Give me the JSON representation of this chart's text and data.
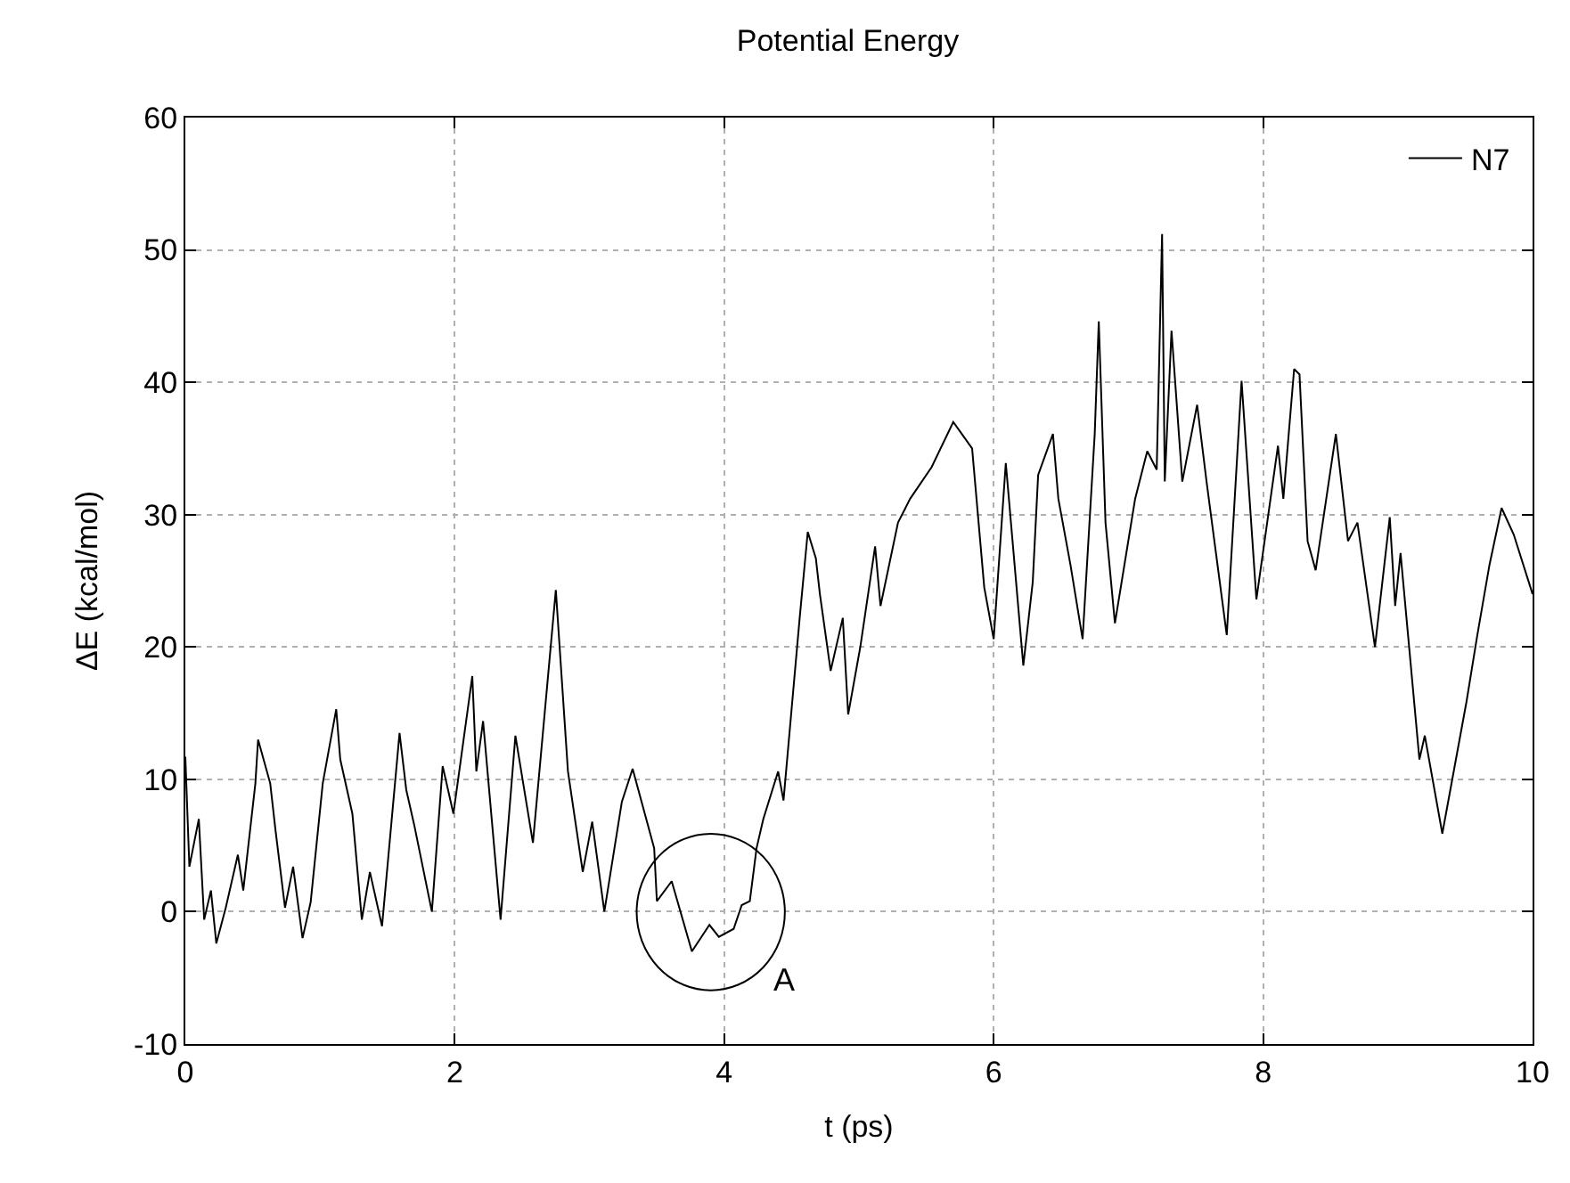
{
  "chart_data": {
    "type": "line",
    "title": "Potential Energy",
    "xlabel": "t (ps)",
    "ylabel": "ΔE (kcal/mol)",
    "x": [
      0,
      0.03,
      0.1,
      0.14,
      0.19,
      0.23,
      0.3,
      0.39,
      0.43,
      0.52,
      0.54,
      0.63,
      0.67,
      0.74,
      0.8,
      0.87,
      0.93,
      1.02,
      1.12,
      1.15,
      1.24,
      1.31,
      1.37,
      1.46,
      1.59,
      1.64,
      1.7,
      1.83,
      1.91,
      1.99,
      2.13,
      2.16,
      2.21,
      2.34,
      2.45,
      2.58,
      2.75,
      2.84,
      2.95,
      3.02,
      3.11,
      3.24,
      3.32,
      3.48,
      3.5,
      3.61,
      3.76,
      3.89,
      3.96,
      4.07,
      4.13,
      4.19,
      4.24,
      4.29,
      4.4,
      4.44,
      4.56,
      4.62,
      4.68,
      4.71,
      4.79,
      4.88,
      4.92,
      5.01,
      5.12,
      5.16,
      5.29,
      5.38,
      5.54,
      5.7,
      5.84,
      5.93,
      6.0,
      6.09,
      6.22,
      6.29,
      6.33,
      6.44,
      6.48,
      6.57,
      6.66,
      6.75,
      6.78,
      6.83,
      6.9,
      7.05,
      7.14,
      7.21,
      7.25,
      7.27,
      7.32,
      7.4,
      7.51,
      7.58,
      7.73,
      7.84,
      7.95,
      8.11,
      8.15,
      8.23,
      8.27,
      8.33,
      8.39,
      8.54,
      8.63,
      8.7,
      8.83,
      8.94,
      8.98,
      9.02,
      9.16,
      9.2,
      9.33,
      9.51,
      9.59,
      9.68,
      9.77,
      9.86,
      10.0
    ],
    "series": [
      {
        "name": "N7",
        "color": "#000000",
        "values": [
          11.7,
          3.4,
          7,
          -0.6,
          1.6,
          -2.4,
          0.3,
          4.3,
          1.6,
          9.7,
          13,
          9.7,
          6.1,
          0.3,
          3.4,
          -2,
          0.7,
          9.7,
          15.3,
          11.5,
          7.4,
          -0.6,
          3,
          -1.1,
          13.5,
          9.2,
          6.5,
          0,
          11,
          7.4,
          17.8,
          10.6,
          14.4,
          -0.6,
          13.3,
          5.2,
          24.3,
          10.6,
          3,
          6.8,
          0,
          8.3,
          10.8,
          4.8,
          0.8,
          2.3,
          -3,
          -1,
          -1.9,
          -1.3,
          0.5,
          0.8,
          4.8,
          7,
          10.6,
          8.4,
          22.2,
          28.7,
          26.7,
          24,
          18.2,
          22.2,
          14.9,
          20,
          27.6,
          23.1,
          29.4,
          31.2,
          33.6,
          37,
          35,
          24.5,
          20.6,
          33.9,
          18.6,
          24.9,
          33,
          36.1,
          31.2,
          26.2,
          20.6,
          36.1,
          44.6,
          29.4,
          21.8,
          31.2,
          34.8,
          33.4,
          51.2,
          32.5,
          43.9,
          32.5,
          38.3,
          32.5,
          20.9,
          40.1,
          23.6,
          35.2,
          31.2,
          41,
          40.6,
          28,
          25.8,
          36.1,
          28,
          29.4,
          20,
          29.8,
          23.1,
          27.1,
          11.5,
          13.3,
          5.9,
          15.9,
          20.9,
          26.2,
          30.5,
          28.5,
          24
        ]
      }
    ],
    "xlim": [
      0,
      10
    ],
    "xticks": [
      0,
      2,
      4,
      6,
      8,
      10
    ],
    "ylim": [
      -10,
      60
    ],
    "yticks": [
      -10,
      0,
      10,
      20,
      30,
      40,
      50,
      60
    ],
    "grid": true,
    "legend": "top right",
    "line_style": "solid",
    "annotations": [
      "A"
    ]
  }
}
